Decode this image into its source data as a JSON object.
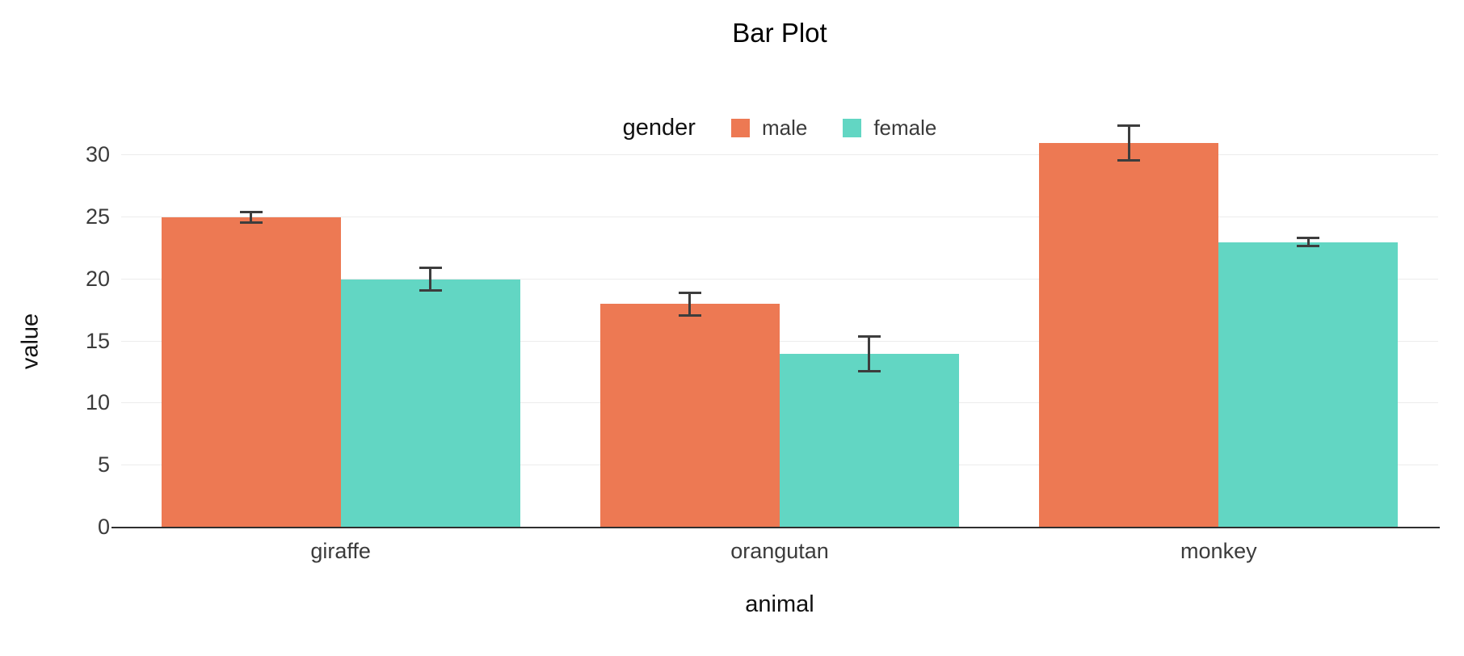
{
  "chart_data": {
    "type": "bar",
    "title": "Bar Plot",
    "xlabel": "animal",
    "ylabel": "value",
    "legend_title": "gender",
    "legend_position": "top-center",
    "grid": true,
    "categories": [
      "giraffe",
      "orangutan",
      "monkey"
    ],
    "series": [
      {
        "name": "male",
        "color": "#ED7953",
        "values": [
          25,
          18,
          31
        ],
        "errors": [
          0.5,
          1.0,
          1.5
        ]
      },
      {
        "name": "female",
        "color": "#62D6C3",
        "values": [
          20,
          14,
          23
        ],
        "errors": [
          1.0,
          1.5,
          0.4
        ]
      }
    ],
    "ylim": [
      0,
      30
    ],
    "yticks": [
      0,
      5,
      10,
      15,
      20,
      25,
      30
    ],
    "error_bar_color": "#3d3d3d",
    "axis_line_color": "#2f2f2f",
    "gridline_color": "#ececec"
  }
}
